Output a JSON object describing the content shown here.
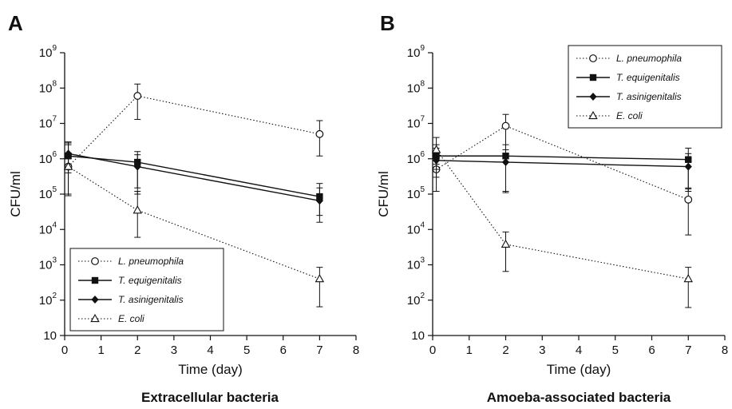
{
  "chart_data": [
    {
      "type": "line",
      "panel_letter": "A",
      "caption": "Extracellular bacteria",
      "xlabel": "Time (day)",
      "ylabel": "CFU/ml",
      "xlim": [
        0,
        8
      ],
      "ylim": [
        10,
        1000000000
      ],
      "yscale": "log",
      "x_ticks": [
        "0",
        "1",
        "2",
        "3",
        "4",
        "5",
        "6",
        "7",
        "8"
      ],
      "y_ticks": [
        {
          "value": 10,
          "base": "10",
          "exp": ""
        },
        {
          "value": 100,
          "base": "10",
          "exp": "2"
        },
        {
          "value": 1000,
          "base": "10",
          "exp": "3"
        },
        {
          "value": 10000,
          "base": "10",
          "exp": "4"
        },
        {
          "value": 100000,
          "base": "10",
          "exp": "5"
        },
        {
          "value": 1000000,
          "base": "10",
          "exp": "6"
        },
        {
          "value": 10000000,
          "base": "10",
          "exp": "7"
        },
        {
          "value": 100000000,
          "base": "10",
          "exp": "8"
        },
        {
          "value": 1000000000,
          "base": "10",
          "exp": "9"
        }
      ],
      "grid": false,
      "legend_position": "bottom-left",
      "series": [
        {
          "name": "L. pneumophila",
          "marker": "circle-open",
          "line": "dotted",
          "points": [
            {
              "x": 0.1,
              "y": 600000,
              "lo": 100000,
              "hi": 2500000
            },
            {
              "x": 2,
              "y": 60000000,
              "lo": 13000000,
              "hi": 130000000
            },
            {
              "x": 7,
              "y": 5000000,
              "lo": 1200000,
              "hi": 12000000
            }
          ]
        },
        {
          "name": "T. equigenitalis",
          "marker": "square-filled",
          "line": "solid",
          "points": [
            {
              "x": 0.1,
              "y": 1200000,
              "lo": 500000,
              "hi": 2800000
            },
            {
              "x": 2,
              "y": 800000,
              "lo": 150000,
              "hi": 1600000
            },
            {
              "x": 7,
              "y": 85000,
              "lo": 25000,
              "hi": 200000
            }
          ]
        },
        {
          "name": "T. asinigenitalis",
          "marker": "diamond-filled",
          "line": "solid",
          "points": [
            {
              "x": 0.1,
              "y": 1400000,
              "lo": 400000,
              "hi": 3000000
            },
            {
              "x": 2,
              "y": 600000,
              "lo": 100000,
              "hi": 1300000
            },
            {
              "x": 7,
              "y": 65000,
              "lo": 16000,
              "hi": 150000
            }
          ]
        },
        {
          "name": "E. coli",
          "marker": "triangle-open",
          "line": "dotted",
          "points": [
            {
              "x": 0.1,
              "y": 600000,
              "lo": 90000,
              "hi": 1200000
            },
            {
              "x": 2,
              "y": 35000,
              "lo": 6000,
              "hi": 120000
            },
            {
              "x": 7,
              "y": 400,
              "lo": 65,
              "hi": 850
            }
          ]
        }
      ]
    },
    {
      "type": "line",
      "panel_letter": "B",
      "caption": "Amoeba-associated bacteria",
      "xlabel": "Time (day)",
      "ylabel": "CFU/ml",
      "xlim": [
        0,
        8
      ],
      "ylim": [
        10,
        1000000000
      ],
      "yscale": "log",
      "x_ticks": [
        "0",
        "1",
        "2",
        "3",
        "4",
        "5",
        "6",
        "7",
        "8"
      ],
      "y_ticks": [
        {
          "value": 10,
          "base": "10",
          "exp": ""
        },
        {
          "value": 100,
          "base": "10",
          "exp": "2"
        },
        {
          "value": 1000,
          "base": "10",
          "exp": "3"
        },
        {
          "value": 10000,
          "base": "10",
          "exp": "4"
        },
        {
          "value": 100000,
          "base": "10",
          "exp": "5"
        },
        {
          "value": 1000000,
          "base": "10",
          "exp": "6"
        },
        {
          "value": 10000000,
          "base": "10",
          "exp": "7"
        },
        {
          "value": 100000000,
          "base": "10",
          "exp": "8"
        },
        {
          "value": 1000000000,
          "base": "10",
          "exp": "9"
        }
      ],
      "grid": false,
      "legend_position": "top-right",
      "series": [
        {
          "name": "L. pneumophila",
          "marker": "circle-open",
          "line": "dotted",
          "points": [
            {
              "x": 0.1,
              "y": 500000,
              "lo": 120000,
              "hi": 1200000
            },
            {
              "x": 2,
              "y": 8500000,
              "lo": 1100000,
              "hi": 18000000
            },
            {
              "x": 7,
              "y": 70000,
              "lo": 7000,
              "hi": 140000
            }
          ]
        },
        {
          "name": "T. equigenitalis",
          "marker": "square-filled",
          "line": "solid",
          "points": [
            {
              "x": 0.1,
              "y": 1200000,
              "lo": 500000,
              "hi": 2500000
            },
            {
              "x": 2,
              "y": 1200000,
              "lo": 120000,
              "hi": 2500000
            },
            {
              "x": 7,
              "y": 950000,
              "lo": 150000,
              "hi": 2000000
            }
          ]
        },
        {
          "name": "T. asinigenitalis",
          "marker": "diamond-filled",
          "line": "solid",
          "points": [
            {
              "x": 0.1,
              "y": 900000,
              "lo": 300000,
              "hi": 2000000
            },
            {
              "x": 2,
              "y": 800000,
              "lo": 110000,
              "hi": 1800000
            },
            {
              "x": 7,
              "y": 600000,
              "lo": 120000,
              "hi": 1400000
            }
          ]
        },
        {
          "name": "E. coli",
          "marker": "triangle-open",
          "line": "dotted",
          "points": [
            {
              "x": 0.1,
              "y": 1800000,
              "lo": 700000,
              "hi": 4000000
            },
            {
              "x": 2,
              "y": 3800,
              "lo": 650,
              "hi": 8500
            },
            {
              "x": 7,
              "y": 400,
              "lo": 62,
              "hi": 850
            }
          ]
        }
      ]
    }
  ]
}
